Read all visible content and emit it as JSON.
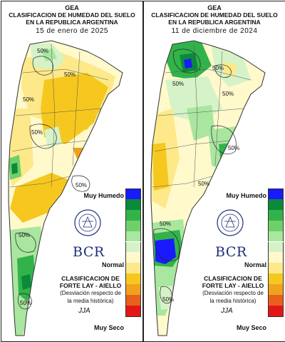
{
  "panels": [
    {
      "title": "GEA",
      "subtitle_line1": "CLASIFICACION DE HUMEDAD DEL SUELO",
      "subtitle_line2": "EN LA REPUBLICA ARGENTINA",
      "date": "15 de enero de 2025",
      "contour_labels": [
        "50%",
        "50%",
        "50%",
        "50%",
        "50%",
        "50%",
        "50%"
      ]
    },
    {
      "title": "GEA",
      "subtitle_line1": "CLASIFICACION DE HUMEDAD DEL SUELO",
      "subtitle_line2": "EN LA REPUBLICA ARGENTINA",
      "date": "11 de diciembre de 2024",
      "contour_labels": [
        "50%",
        "50%",
        "50%",
        "50%",
        "50%",
        "50%",
        "50%"
      ]
    }
  ],
  "legend": {
    "top_label": "Muy Humedo",
    "middle_label": "Normal",
    "bottom_label": "Muy Seco",
    "colors": [
      "#1a1aff",
      "#0a8a3a",
      "#32b34a",
      "#6fd06a",
      "#a9e6a0",
      "#d6f2c8",
      "#fff9cc",
      "#fde98a",
      "#f6c81f",
      "#f0a21d",
      "#e8601c",
      "#e21616"
    ]
  },
  "branding": {
    "logo_text": "BCR",
    "seal_text": "BOLSA DE COMERCIO DE ROSARIO",
    "classification_line1": "CLASIFICACION DE",
    "classification_line2": "FORTE LAY - AIELLO",
    "classification_line3": "(Desviación respecto de",
    "classification_line4": "la media histórica)",
    "signature": "JJA"
  }
}
